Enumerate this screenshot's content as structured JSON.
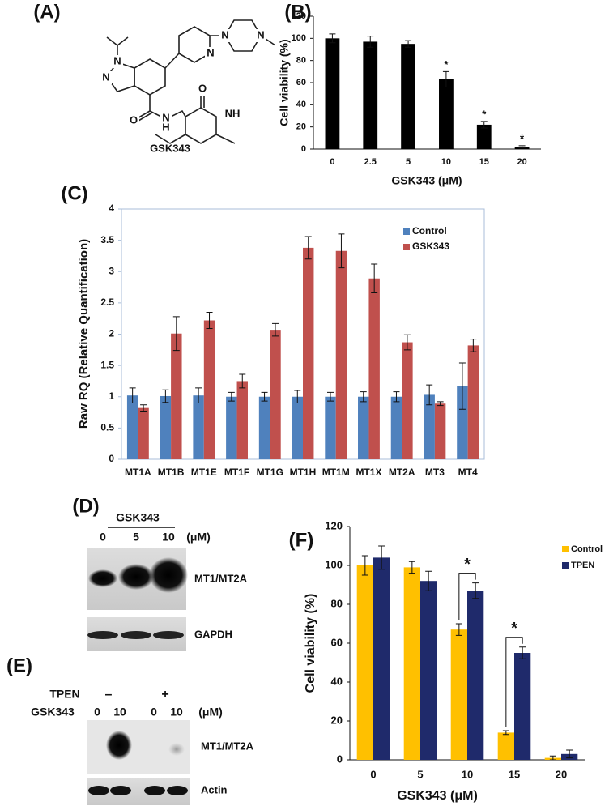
{
  "panels": {
    "A": {
      "label": "(A)",
      "compound": "GSK343",
      "atoms": [
        "N",
        "N",
        "N",
        "N",
        "N",
        "O",
        "N",
        "H",
        "O",
        "NH"
      ]
    },
    "D": {
      "label": "(D)",
      "treatment": "GSK343",
      "doses": [
        "0",
        "5",
        "10"
      ],
      "unit": "(μM)",
      "bands": [
        "MT1/MT2A",
        "GAPDH"
      ]
    },
    "E": {
      "label": "(E)",
      "row1_label": "TPEN",
      "row1_marks": [
        "–",
        "+"
      ],
      "row2_label": "GSK343",
      "doses": [
        "0",
        "10",
        "0",
        "10"
      ],
      "unit": "(μM)",
      "bands": [
        "MT1/MT2A",
        "Actin"
      ]
    }
  },
  "chart_data": [
    {
      "type": "bar",
      "panel_label": "(B)",
      "y_label": "Cell viability (%)",
      "x_label": "GSK343 (μM)",
      "categories": [
        "0",
        "2.5",
        "5",
        "10",
        "15",
        "20"
      ],
      "values": [
        100,
        97,
        95,
        63,
        22,
        2
      ],
      "errors": [
        4,
        5,
        3,
        7,
        3,
        1
      ],
      "color": "#000000",
      "significance": [
        null,
        null,
        null,
        "*",
        "*",
        "*"
      ],
      "ylim": [
        0,
        120
      ],
      "yticks": [
        0,
        20,
        40,
        60,
        80,
        100,
        120
      ]
    },
    {
      "type": "bar",
      "panel_label": "(C)",
      "y_label": "Raw RQ (Relative Quantification)",
      "categories": [
        "MT1A",
        "MT1B",
        "MT1E",
        "MT1F",
        "MT1G",
        "MT1H",
        "MT1M",
        "MT1X",
        "MT2A",
        "MT3",
        "MT4"
      ],
      "series": [
        {
          "name": "Control",
          "color": "#4f81bd",
          "values": [
            1.02,
            1.01,
            1.02,
            1.0,
            1.0,
            1.0,
            1.0,
            1.0,
            1.0,
            1.03,
            1.17
          ],
          "errors": [
            0.12,
            0.1,
            0.12,
            0.07,
            0.07,
            0.1,
            0.07,
            0.08,
            0.08,
            0.16,
            0.37
          ]
        },
        {
          "name": "GSK343",
          "color": "#c0504d",
          "values": [
            0.82,
            2.01,
            2.22,
            1.25,
            2.07,
            3.38,
            3.33,
            2.89,
            1.87,
            0.89,
            1.82
          ],
          "errors": [
            0.05,
            0.27,
            0.13,
            0.11,
            0.1,
            0.18,
            0.27,
            0.23,
            0.12,
            0.03,
            0.1
          ]
        }
      ],
      "legend": "upper right",
      "ylim": [
        0,
        4
      ],
      "yticks": [
        0,
        0.5,
        1,
        1.5,
        2,
        2.5,
        3,
        3.5,
        4
      ]
    },
    {
      "type": "bar",
      "panel_label": "(F)",
      "y_label": "Cell viability (%)",
      "x_label": "GSK343 (μM)",
      "categories": [
        "0",
        "5",
        "10",
        "15",
        "20"
      ],
      "series": [
        {
          "name": "Control",
          "color": "#ffc000",
          "values": [
            100,
            99,
            67,
            14,
            1
          ],
          "errors": [
            5,
            3,
            3,
            1,
            1
          ]
        },
        {
          "name": "TPEN",
          "color": "#1f2a6b",
          "values": [
            104,
            92,
            87,
            55,
            3
          ],
          "errors": [
            6,
            5,
            4,
            3,
            2
          ]
        }
      ],
      "significance": [
        null,
        null,
        "*",
        "*",
        null
      ],
      "legend": "upper right",
      "ylim": [
        0,
        120
      ],
      "yticks": [
        0,
        20,
        40,
        60,
        80,
        100,
        120
      ]
    }
  ]
}
